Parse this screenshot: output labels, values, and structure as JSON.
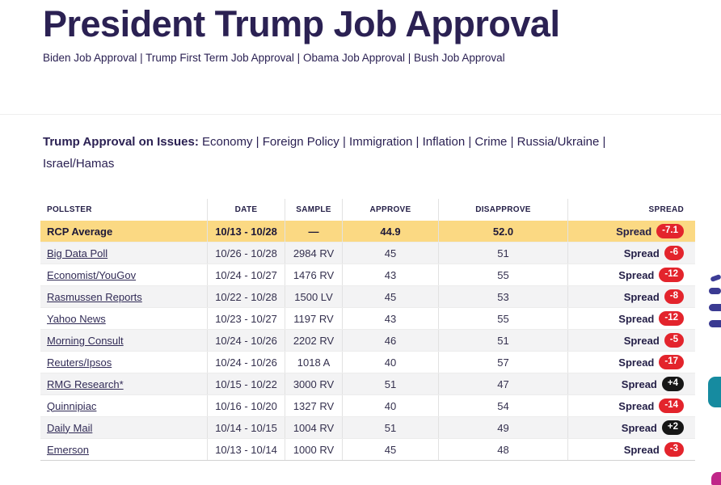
{
  "page": {
    "title": "President Trump Job Approval",
    "link_separator": "|",
    "nav_links": [
      "Biden Job Approval",
      "Trump First Term Job Approval",
      "Obama Job Approval",
      "Bush Job Approval"
    ],
    "issues": {
      "label": "Trump Approval on Issues:",
      "items": [
        "Economy",
        "Foreign Policy",
        "Immigration",
        "Inflation",
        "Crime",
        "Russia/Ukraine",
        "Israel/Hamas"
      ]
    }
  },
  "table": {
    "columns": [
      "POLLSTER",
      "DATE",
      "SAMPLE",
      "APPROVE",
      "DISAPPROVE",
      "SPREAD"
    ],
    "spread_label": "Spread",
    "rows": [
      {
        "pollster": "RCP Average",
        "date": "10/13 - 10/28",
        "sample": "—",
        "approve": "44.9",
        "disapprove": "52.0",
        "spread": "-7.1",
        "is_average": true
      },
      {
        "pollster": "Big Data Poll",
        "date": "10/26 - 10/28",
        "sample": "2984 RV",
        "approve": "45",
        "disapprove": "51",
        "spread": "-6"
      },
      {
        "pollster": "Economist/YouGov",
        "date": "10/24 - 10/27",
        "sample": "1476 RV",
        "approve": "43",
        "disapprove": "55",
        "spread": "-12"
      },
      {
        "pollster": "Rasmussen Reports",
        "date": "10/22 - 10/28",
        "sample": "1500 LV",
        "approve": "45",
        "disapprove": "53",
        "spread": "-8"
      },
      {
        "pollster": "Yahoo News",
        "date": "10/23 - 10/27",
        "sample": "1197 RV",
        "approve": "43",
        "disapprove": "55",
        "spread": "-12"
      },
      {
        "pollster": "Morning Consult",
        "date": "10/24 - 10/26",
        "sample": "2202 RV",
        "approve": "46",
        "disapprove": "51",
        "spread": "-5"
      },
      {
        "pollster": "Reuters/Ipsos",
        "date": "10/24 - 10/26",
        "sample": "1018 A",
        "approve": "40",
        "disapprove": "57",
        "spread": "-17"
      },
      {
        "pollster": "RMG Research*",
        "date": "10/15 - 10/22",
        "sample": "3000 RV",
        "approve": "51",
        "disapprove": "47",
        "spread": "+4"
      },
      {
        "pollster": "Quinnipiac",
        "date": "10/16 - 10/20",
        "sample": "1327 RV",
        "approve": "40",
        "disapprove": "54",
        "spread": "-14"
      },
      {
        "pollster": "Daily Mail",
        "date": "10/14 - 10/15",
        "sample": "1004 RV",
        "approve": "51",
        "disapprove": "49",
        "spread": "+2"
      },
      {
        "pollster": "Emerson",
        "date": "10/13 - 10/14",
        "sample": "1000 RV",
        "approve": "45",
        "disapprove": "48",
        "spread": "-3"
      }
    ]
  },
  "colors": {
    "accent_text": "#2b2153",
    "average_row_bg": "#fbd983",
    "negative_pill": "#e3242c",
    "positive_pill": "#161616"
  }
}
